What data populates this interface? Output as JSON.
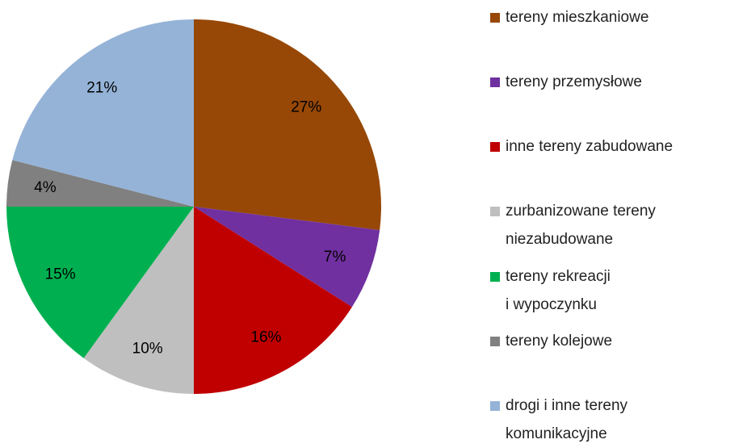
{
  "chart_data": {
    "type": "pie",
    "categories": [
      "tereny mieszkaniowe",
      "tereny przemysłowe",
      "inne tereny zabudowane",
      "zurbanizowane tereny\nniezabudowane",
      "tereny rekreacji\ni wypoczynku",
      "tereny kolejowe",
      "drogi i inne tereny\nkomunikacyjne"
    ],
    "values": [
      27,
      7,
      16,
      10,
      15,
      4,
      21
    ],
    "value_labels": [
      "27%",
      "7%",
      "16%",
      "10%",
      "15%",
      "4%",
      "21%"
    ],
    "colors": [
      "#974806",
      "#7030a0",
      "#c00000",
      "#bfbfbf",
      "#00b050",
      "#808080",
      "#95b3d7"
    ],
    "legend": "right"
  }
}
